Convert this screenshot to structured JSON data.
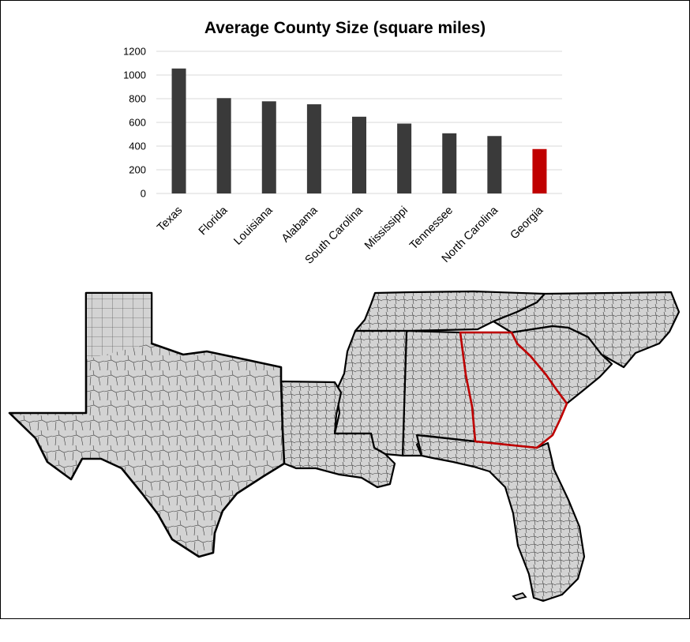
{
  "chart_data": {
    "type": "bar",
    "title": "Average County Size (square miles)",
    "xlabel": "",
    "ylabel": "",
    "categories": [
      "Texas",
      "Florida",
      "Louisiana",
      "Alabama",
      "South Carolina",
      "Mississippi",
      "Tennessee",
      "North Carolina",
      "Georgia"
    ],
    "values": [
      1055,
      805,
      778,
      753,
      648,
      590,
      508,
      485,
      375
    ],
    "highlight": "Georgia",
    "ylim": [
      0,
      1200
    ],
    "yticks": [
      "0",
      "200",
      "400",
      "600",
      "800",
      "1000",
      "1200"
    ],
    "grid": true,
    "colors": {
      "bar": "#3a3a3a",
      "highlight": "#c00000",
      "grid": "#d9d9d9"
    }
  },
  "map": {
    "states": [
      "Texas",
      "Louisiana",
      "Mississippi",
      "Alabama",
      "Florida",
      "Georgia",
      "South Carolina",
      "Tennessee",
      "North Carolina"
    ],
    "highlight": "Georgia",
    "colors": {
      "land": "#d3d3d3",
      "county_line": "#333333",
      "state_line": "#000000",
      "highlight_line": "#c00000"
    }
  }
}
